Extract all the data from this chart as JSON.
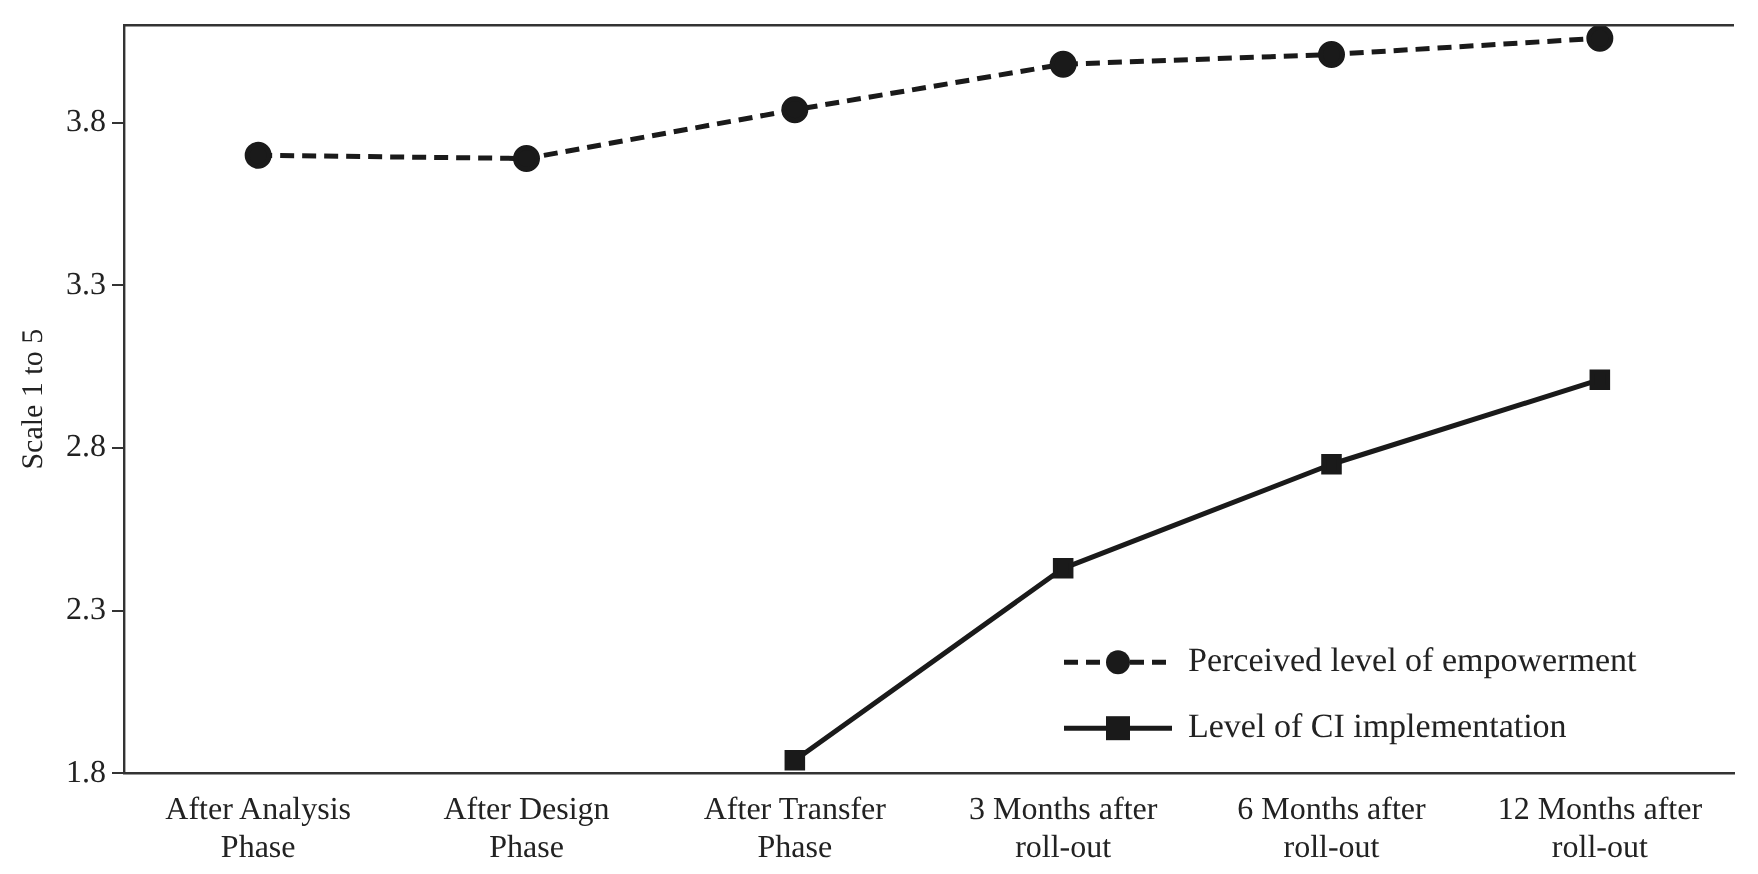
{
  "chart_data": {
    "type": "line",
    "ylabel": "Scale 1 to 5",
    "categories": [
      "After Analysis Phase",
      "After Design Phase",
      "After Transfer Phase",
      "3 Months after roll-out",
      "6 Months after roll-out",
      "12 Months after roll-out"
    ],
    "series": [
      {
        "name": "Perceived level of empowerment",
        "color": "#1a1a1a",
        "marker": "circle",
        "line_style": "dashed",
        "values": [
          3.7,
          3.69,
          3.84,
          3.98,
          4.01,
          4.06
        ]
      },
      {
        "name": "Level of CI implementation",
        "color": "#1a1a1a",
        "marker": "square",
        "line_style": "solid",
        "values": [
          null,
          null,
          1.84,
          2.43,
          2.75,
          3.01
        ]
      }
    ],
    "ylim": [
      1.8,
      4.1
    ],
    "yticks": [
      1.8,
      2.3,
      2.8,
      3.3,
      3.8
    ],
    "grid": false,
    "legend": "bottom right"
  }
}
